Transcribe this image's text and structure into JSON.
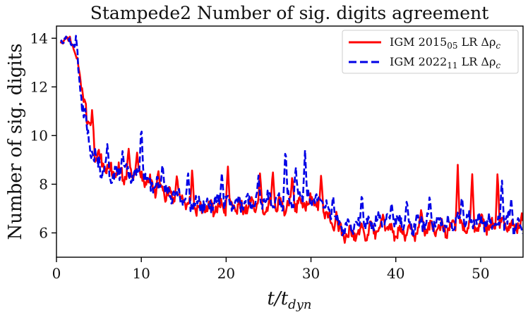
{
  "chart_data": {
    "type": "line",
    "title": "Stampede2 Number of sig. digits agreement",
    "xlabel": "t/t",
    "xlabel_sub": "dyn",
    "ylabel": "Number of sig. digits",
    "xlim": [
      0,
      55
    ],
    "ylim": [
      5.0,
      14.5
    ],
    "xticks": [
      0,
      10,
      20,
      30,
      40,
      50
    ],
    "yticks": [
      6,
      8,
      10,
      12,
      14
    ],
    "legend_position": "top-right",
    "series": [
      {
        "name": "IGM 2015",
        "name_sub": "05",
        "name_tail": " LR Δρ",
        "name_tail_sub": "c",
        "color": "#ff0000",
        "style": "solid",
        "x": [
          0.5,
          1.0,
          1.5,
          2.0,
          2.5,
          3.0,
          3.5,
          4.0,
          4.5,
          5.0,
          5.5,
          6.0,
          7.0,
          8.0,
          9.0,
          10.0,
          11.0,
          12.0,
          13.0,
          14.0,
          15.0,
          15.5,
          16.0,
          17.0,
          18.0,
          19.0,
          20.0,
          21.0,
          22.0,
          23.0,
          24.0,
          25.0,
          26.0,
          27.0,
          28.0,
          29.0,
          30.0,
          31.0,
          31.8,
          32.3,
          33.0,
          34.0,
          35.0,
          36.0,
          37.0,
          38.0,
          39.0,
          40.0,
          41.0,
          42.0,
          43.0,
          44.0,
          45.0,
          46.0,
          47.0,
          48.0,
          49.0,
          50.0,
          51.0,
          52.0,
          53.0,
          54.0,
          55.0
        ],
        "y": [
          13.8,
          14.0,
          13.9,
          13.7,
          13.0,
          11.8,
          10.8,
          10.0,
          9.4,
          9.0,
          8.8,
          8.7,
          8.5,
          8.4,
          8.5,
          8.3,
          8.0,
          7.8,
          7.6,
          7.5,
          7.3,
          7.1,
          7.0,
          7.0,
          7.0,
          7.1,
          7.0,
          7.1,
          7.0,
          7.2,
          7.1,
          7.1,
          7.2,
          7.1,
          7.2,
          7.2,
          7.3,
          7.1,
          7.0,
          6.3,
          6.1,
          5.9,
          5.9,
          6.0,
          6.1,
          6.2,
          6.2,
          6.0,
          6.1,
          6.0,
          6.2,
          6.2,
          6.1,
          6.2,
          6.3,
          6.2,
          6.3,
          6.4,
          6.3,
          6.2,
          6.4,
          6.2,
          6.4
        ],
        "peaks": [
          {
            "x": 3.3,
            "y": 11.5
          },
          {
            "x": 4.2,
            "y": 11.1
          },
          {
            "x": 8.5,
            "y": 9.5
          },
          {
            "x": 9.5,
            "y": 9.3
          },
          {
            "x": 12.0,
            "y": 8.6
          },
          {
            "x": 14.2,
            "y": 8.4
          },
          {
            "x": 16.0,
            "y": 8.7
          },
          {
            "x": 20.2,
            "y": 8.8
          },
          {
            "x": 24.0,
            "y": 8.5
          },
          {
            "x": 25.5,
            "y": 8.6
          },
          {
            "x": 27.8,
            "y": 8.4
          },
          {
            "x": 31.2,
            "y": 8.4
          },
          {
            "x": 33.0,
            "y": 6.9
          },
          {
            "x": 38.5,
            "y": 6.8
          },
          {
            "x": 43.0,
            "y": 7.0
          },
          {
            "x": 47.3,
            "y": 8.8
          },
          {
            "x": 49.0,
            "y": 8.5
          },
          {
            "x": 52.0,
            "y": 8.6
          }
        ]
      },
      {
        "name": "IGM 2022",
        "name_sub": "11",
        "name_tail": " LR Δρ",
        "name_tail_sub": "c",
        "color": "#0000e6",
        "style": "dashed",
        "x": [
          0.5,
          1.0,
          1.5,
          2.0,
          2.5,
          3.0,
          3.5,
          4.0,
          4.5,
          5.0,
          5.5,
          6.0,
          7.0,
          8.0,
          9.0,
          10.0,
          11.0,
          12.0,
          13.0,
          14.0,
          15.0,
          15.5,
          16.0,
          17.0,
          18.0,
          19.0,
          20.0,
          21.0,
          22.0,
          23.0,
          24.0,
          25.0,
          26.0,
          27.0,
          28.0,
          29.0,
          30.0,
          31.0,
          31.8,
          32.3,
          33.0,
          34.0,
          35.0,
          36.0,
          37.0,
          38.0,
          39.0,
          40.0,
          41.0,
          42.0,
          43.0,
          44.0,
          45.0,
          46.0,
          47.0,
          48.0,
          49.0,
          50.0,
          51.0,
          52.0,
          53.0,
          54.0,
          55.0
        ],
        "y": [
          14.0,
          13.9,
          14.0,
          13.8,
          12.8,
          11.5,
          10.4,
          9.6,
          9.1,
          8.8,
          8.6,
          8.5,
          8.4,
          8.5,
          8.4,
          8.4,
          8.1,
          7.9,
          7.7,
          7.6,
          7.5,
          7.3,
          7.2,
          7.2,
          7.2,
          7.3,
          7.2,
          7.3,
          7.2,
          7.3,
          7.3,
          7.4,
          7.3,
          7.4,
          7.4,
          7.5,
          7.4,
          7.3,
          7.2,
          6.6,
          6.4,
          6.2,
          6.3,
          6.3,
          6.4,
          6.5,
          6.4,
          6.5,
          6.4,
          6.3,
          6.5,
          6.4,
          6.5,
          6.4,
          6.5,
          6.4,
          6.5,
          6.5,
          6.4,
          6.3,
          6.5,
          6.3,
          6.3
        ],
        "peaks": [
          {
            "x": 2.3,
            "y": 14.1
          },
          {
            "x": 6.0,
            "y": 9.7
          },
          {
            "x": 7.8,
            "y": 9.4
          },
          {
            "x": 10.0,
            "y": 10.5
          },
          {
            "x": 12.5,
            "y": 8.9
          },
          {
            "x": 15.5,
            "y": 8.6
          },
          {
            "x": 19.5,
            "y": 8.5
          },
          {
            "x": 23.8,
            "y": 8.4
          },
          {
            "x": 27.0,
            "y": 9.6
          },
          {
            "x": 28.2,
            "y": 8.8
          },
          {
            "x": 29.3,
            "y": 9.4
          },
          {
            "x": 32.6,
            "y": 7.6
          },
          {
            "x": 36.0,
            "y": 7.7
          },
          {
            "x": 39.5,
            "y": 7.3
          },
          {
            "x": 41.3,
            "y": 7.4
          },
          {
            "x": 44.0,
            "y": 7.6
          },
          {
            "x": 47.8,
            "y": 7.6
          },
          {
            "x": 52.5,
            "y": 8.3
          },
          {
            "x": 53.6,
            "y": 7.4
          }
        ]
      }
    ]
  }
}
